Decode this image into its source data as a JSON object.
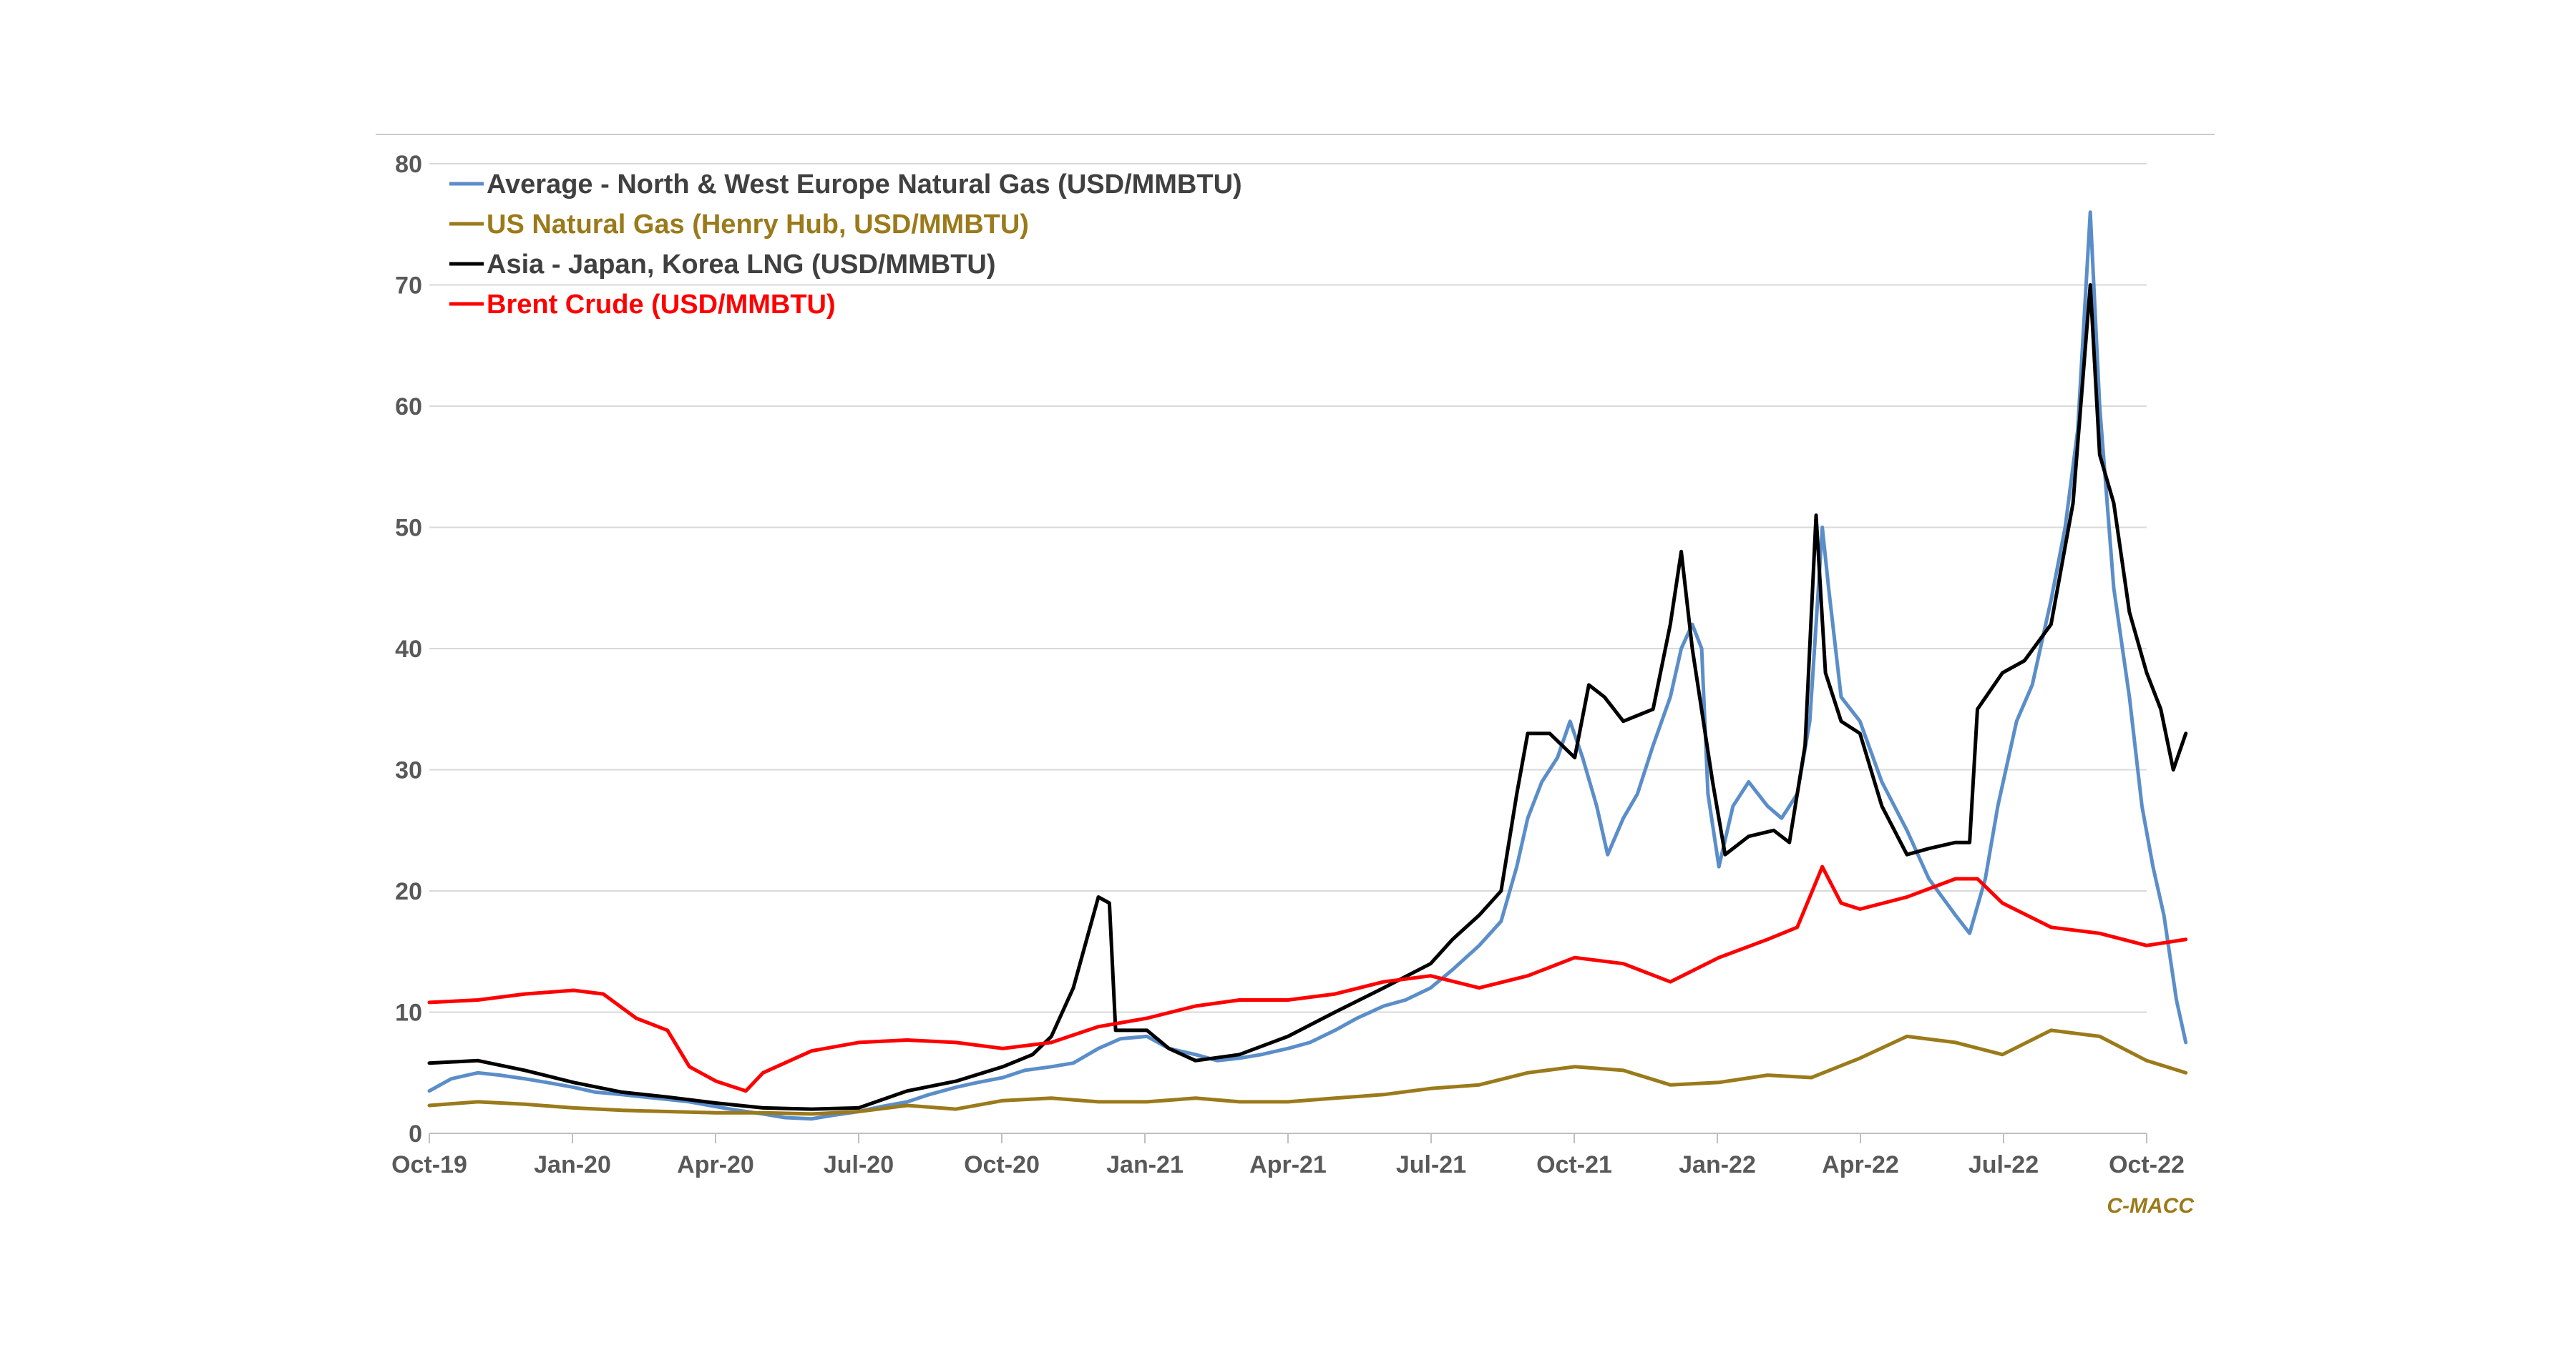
{
  "chart_data": {
    "type": "line",
    "title": "",
    "xlabel": "",
    "ylabel": "",
    "ylim": [
      0,
      80
    ],
    "yticks": [
      "0",
      "10",
      "20",
      "30",
      "40",
      "50",
      "60",
      "70",
      "80"
    ],
    "xticks": [
      "Oct-19",
      "Jan-20",
      "Apr-20",
      "Jul-20",
      "Oct-20",
      "Jan-21",
      "Apr-21",
      "Jul-21",
      "Oct-21",
      "Jan-22",
      "Apr-22",
      "Jul-22",
      "Oct-22"
    ],
    "grid": true,
    "legend_position": "top-left",
    "source_label": "C-MACC",
    "source_color": "#9a7a1a",
    "series": [
      {
        "name": "Average - North & West Europe Natural Gas (USD/MMBTU)",
        "color": "#5b8ec9",
        "points": [
          [
            "2019-10-01",
            3.5
          ],
          [
            "2019-10-15",
            4.5
          ],
          [
            "2019-11-01",
            5.0
          ],
          [
            "2019-11-15",
            4.8
          ],
          [
            "2019-12-01",
            4.5
          ],
          [
            "2019-12-15",
            4.2
          ],
          [
            "2020-01-01",
            3.8
          ],
          [
            "2020-01-15",
            3.4
          ],
          [
            "2020-02-01",
            3.2
          ],
          [
            "2020-02-15",
            3.0
          ],
          [
            "2020-03-01",
            2.8
          ],
          [
            "2020-03-15",
            2.6
          ],
          [
            "2020-04-01",
            2.2
          ],
          [
            "2020-04-15",
            1.9
          ],
          [
            "2020-05-01",
            1.6
          ],
          [
            "2020-05-15",
            1.3
          ],
          [
            "2020-06-01",
            1.2
          ],
          [
            "2020-06-15",
            1.5
          ],
          [
            "2020-07-01",
            1.8
          ],
          [
            "2020-07-15",
            2.2
          ],
          [
            "2020-08-01",
            2.6
          ],
          [
            "2020-08-15",
            3.2
          ],
          [
            "2020-09-01",
            3.8
          ],
          [
            "2020-09-15",
            4.2
          ],
          [
            "2020-10-01",
            4.6
          ],
          [
            "2020-10-15",
            5.2
          ],
          [
            "2020-11-01",
            5.5
          ],
          [
            "2020-11-15",
            5.8
          ],
          [
            "2020-12-01",
            7.0
          ],
          [
            "2020-12-15",
            7.8
          ],
          [
            "2021-01-01",
            8.0
          ],
          [
            "2021-01-15",
            7.0
          ],
          [
            "2021-02-01",
            6.5
          ],
          [
            "2021-02-15",
            6.0
          ],
          [
            "2021-03-01",
            6.2
          ],
          [
            "2021-03-15",
            6.5
          ],
          [
            "2021-04-01",
            7.0
          ],
          [
            "2021-04-15",
            7.5
          ],
          [
            "2021-05-01",
            8.5
          ],
          [
            "2021-05-15",
            9.5
          ],
          [
            "2021-06-01",
            10.5
          ],
          [
            "2021-06-15",
            11.0
          ],
          [
            "2021-07-01",
            12.0
          ],
          [
            "2021-07-15",
            13.5
          ],
          [
            "2021-08-01",
            15.5
          ],
          [
            "2021-08-15",
            17.5
          ],
          [
            "2021-08-25",
            22.0
          ],
          [
            "2021-09-01",
            26.0
          ],
          [
            "2021-09-10",
            29.0
          ],
          [
            "2021-09-20",
            31.0
          ],
          [
            "2021-09-28",
            34.0
          ],
          [
            "2021-10-06",
            31.0
          ],
          [
            "2021-10-15",
            27.0
          ],
          [
            "2021-10-22",
            23.0
          ],
          [
            "2021-11-01",
            26.0
          ],
          [
            "2021-11-10",
            28.0
          ],
          [
            "2021-11-20",
            32.0
          ],
          [
            "2021-12-01",
            36.0
          ],
          [
            "2021-12-08",
            40.0
          ],
          [
            "2021-12-15",
            42.0
          ],
          [
            "2021-12-21",
            40.0
          ],
          [
            "2021-12-25",
            28.0
          ],
          [
            "2022-01-01",
            22.0
          ],
          [
            "2022-01-10",
            27.0
          ],
          [
            "2022-01-20",
            29.0
          ],
          [
            "2022-02-01",
            27.0
          ],
          [
            "2022-02-10",
            26.0
          ],
          [
            "2022-02-20",
            28.0
          ],
          [
            "2022-02-28",
            34.0
          ],
          [
            "2022-03-04",
            42.0
          ],
          [
            "2022-03-08",
            50.0
          ],
          [
            "2022-03-12",
            45.0
          ],
          [
            "2022-03-20",
            36.0
          ],
          [
            "2022-04-01",
            34.0
          ],
          [
            "2022-04-15",
            29.0
          ],
          [
            "2022-05-01",
            25.0
          ],
          [
            "2022-05-15",
            21.0
          ],
          [
            "2022-06-01",
            18.0
          ],
          [
            "2022-06-10",
            16.5
          ],
          [
            "2022-06-20",
            21.0
          ],
          [
            "2022-06-28",
            27.0
          ],
          [
            "2022-07-10",
            34.0
          ],
          [
            "2022-07-20",
            37.0
          ],
          [
            "2022-08-01",
            44.0
          ],
          [
            "2022-08-10",
            50.0
          ],
          [
            "2022-08-18",
            58.0
          ],
          [
            "2022-08-26",
            76.0
          ],
          [
            "2022-09-01",
            60.0
          ],
          [
            "2022-09-10",
            45.0
          ],
          [
            "2022-09-20",
            36.0
          ],
          [
            "2022-09-28",
            27.0
          ],
          [
            "2022-10-05",
            22.0
          ],
          [
            "2022-10-12",
            18.0
          ],
          [
            "2022-10-20",
            11.0
          ],
          [
            "2022-10-26",
            7.5
          ]
        ]
      },
      {
        "name": "US Natural Gas (Henry Hub, USD/MMBTU)",
        "color": "#9a7a1a",
        "points": [
          [
            "2019-10-01",
            2.3
          ],
          [
            "2019-11-01",
            2.6
          ],
          [
            "2019-12-01",
            2.4
          ],
          [
            "2020-01-01",
            2.1
          ],
          [
            "2020-02-01",
            1.9
          ],
          [
            "2020-03-01",
            1.8
          ],
          [
            "2020-04-01",
            1.7
          ],
          [
            "2020-05-01",
            1.7
          ],
          [
            "2020-06-01",
            1.6
          ],
          [
            "2020-07-01",
            1.8
          ],
          [
            "2020-08-01",
            2.3
          ],
          [
            "2020-09-01",
            2.0
          ],
          [
            "2020-10-01",
            2.7
          ],
          [
            "2020-11-01",
            2.9
          ],
          [
            "2020-12-01",
            2.6
          ],
          [
            "2021-01-01",
            2.6
          ],
          [
            "2021-02-01",
            2.9
          ],
          [
            "2021-03-01",
            2.6
          ],
          [
            "2021-04-01",
            2.6
          ],
          [
            "2021-05-01",
            2.9
          ],
          [
            "2021-06-01",
            3.2
          ],
          [
            "2021-07-01",
            3.7
          ],
          [
            "2021-08-01",
            4.0
          ],
          [
            "2021-09-01",
            5.0
          ],
          [
            "2021-10-01",
            5.5
          ],
          [
            "2021-11-01",
            5.2
          ],
          [
            "2021-12-01",
            4.0
          ],
          [
            "2022-01-01",
            4.2
          ],
          [
            "2022-02-01",
            4.8
          ],
          [
            "2022-03-01",
            4.6
          ],
          [
            "2022-04-01",
            6.2
          ],
          [
            "2022-05-01",
            8.0
          ],
          [
            "2022-06-01",
            7.5
          ],
          [
            "2022-07-01",
            6.5
          ],
          [
            "2022-08-01",
            8.5
          ],
          [
            "2022-09-01",
            8.0
          ],
          [
            "2022-10-01",
            6.0
          ],
          [
            "2022-10-26",
            5.0
          ]
        ]
      },
      {
        "name": "Asia - Japan, Korea LNG (USD/MMBTU)",
        "color": "#000000",
        "points": [
          [
            "2019-10-01",
            5.8
          ],
          [
            "2019-11-01",
            6.0
          ],
          [
            "2019-12-01",
            5.2
          ],
          [
            "2020-01-01",
            4.2
          ],
          [
            "2020-02-01",
            3.4
          ],
          [
            "2020-03-01",
            3.0
          ],
          [
            "2020-04-01",
            2.5
          ],
          [
            "2020-05-01",
            2.1
          ],
          [
            "2020-06-01",
            2.0
          ],
          [
            "2020-07-01",
            2.1
          ],
          [
            "2020-08-01",
            3.5
          ],
          [
            "2020-09-01",
            4.3
          ],
          [
            "2020-10-01",
            5.5
          ],
          [
            "2020-10-20",
            6.5
          ],
          [
            "2020-11-01",
            8.0
          ],
          [
            "2020-11-15",
            12.0
          ],
          [
            "2020-12-01",
            19.5
          ],
          [
            "2020-12-08",
            19.0
          ],
          [
            "2020-12-12",
            8.5
          ],
          [
            "2021-01-01",
            8.5
          ],
          [
            "2021-01-15",
            7.0
          ],
          [
            "2021-02-01",
            6.0
          ],
          [
            "2021-03-01",
            6.5
          ],
          [
            "2021-04-01",
            8.0
          ],
          [
            "2021-05-01",
            10.0
          ],
          [
            "2021-06-01",
            12.0
          ],
          [
            "2021-07-01",
            14.0
          ],
          [
            "2021-07-15",
            16.0
          ],
          [
            "2021-08-01",
            18.0
          ],
          [
            "2021-08-15",
            20.0
          ],
          [
            "2021-08-25",
            28.0
          ],
          [
            "2021-09-01",
            33.0
          ],
          [
            "2021-09-15",
            33.0
          ],
          [
            "2021-10-01",
            31.0
          ],
          [
            "2021-10-10",
            37.0
          ],
          [
            "2021-10-20",
            36.0
          ],
          [
            "2021-11-01",
            34.0
          ],
          [
            "2021-11-20",
            35.0
          ],
          [
            "2021-12-01",
            42.0
          ],
          [
            "2021-12-08",
            48.0
          ],
          [
            "2021-12-15",
            40.0
          ],
          [
            "2021-12-28",
            29.0
          ],
          [
            "2022-01-05",
            23.0
          ],
          [
            "2022-01-20",
            24.5
          ],
          [
            "2022-02-05",
            25.0
          ],
          [
            "2022-02-15",
            24.0
          ],
          [
            "2022-02-25",
            32.0
          ],
          [
            "2022-03-04",
            51.0
          ],
          [
            "2022-03-10",
            38.0
          ],
          [
            "2022-03-20",
            34.0
          ],
          [
            "2022-04-01",
            33.0
          ],
          [
            "2022-04-15",
            27.0
          ],
          [
            "2022-05-01",
            23.0
          ],
          [
            "2022-05-15",
            23.5
          ],
          [
            "2022-06-01",
            24.0
          ],
          [
            "2022-06-10",
            24.0
          ],
          [
            "2022-06-15",
            35.0
          ],
          [
            "2022-07-01",
            38.0
          ],
          [
            "2022-07-15",
            39.0
          ],
          [
            "2022-08-01",
            42.0
          ],
          [
            "2022-08-15",
            52.0
          ],
          [
            "2022-08-26",
            70.0
          ],
          [
            "2022-09-01",
            56.0
          ],
          [
            "2022-09-10",
            52.0
          ],
          [
            "2022-09-20",
            43.0
          ],
          [
            "2022-10-01",
            38.0
          ],
          [
            "2022-10-10",
            35.0
          ],
          [
            "2022-10-18",
            30.0
          ],
          [
            "2022-10-26",
            33.0
          ]
        ]
      },
      {
        "name": "Brent Crude (USD/MMBTU)",
        "color": "#ff0000",
        "points": [
          [
            "2019-10-01",
            10.8
          ],
          [
            "2019-11-01",
            11.0
          ],
          [
            "2019-12-01",
            11.5
          ],
          [
            "2020-01-01",
            11.8
          ],
          [
            "2020-01-20",
            11.5
          ],
          [
            "2020-02-10",
            9.5
          ],
          [
            "2020-03-01",
            8.5
          ],
          [
            "2020-03-15",
            5.5
          ],
          [
            "2020-04-01",
            4.3
          ],
          [
            "2020-04-20",
            3.5
          ],
          [
            "2020-05-01",
            5.0
          ],
          [
            "2020-06-01",
            6.8
          ],
          [
            "2020-07-01",
            7.5
          ],
          [
            "2020-08-01",
            7.7
          ],
          [
            "2020-09-01",
            7.5
          ],
          [
            "2020-10-01",
            7.0
          ],
          [
            "2020-11-01",
            7.5
          ],
          [
            "2020-12-01",
            8.8
          ],
          [
            "2021-01-01",
            9.5
          ],
          [
            "2021-02-01",
            10.5
          ],
          [
            "2021-03-01",
            11.0
          ],
          [
            "2021-04-01",
            11.0
          ],
          [
            "2021-05-01",
            11.5
          ],
          [
            "2021-06-01",
            12.5
          ],
          [
            "2021-07-01",
            13.0
          ],
          [
            "2021-08-01",
            12.0
          ],
          [
            "2021-09-01",
            13.0
          ],
          [
            "2021-10-01",
            14.5
          ],
          [
            "2021-11-01",
            14.0
          ],
          [
            "2021-12-01",
            12.5
          ],
          [
            "2022-01-01",
            14.5
          ],
          [
            "2022-02-01",
            16.0
          ],
          [
            "2022-02-20",
            17.0
          ],
          [
            "2022-03-08",
            22.0
          ],
          [
            "2022-03-20",
            19.0
          ],
          [
            "2022-04-01",
            18.5
          ],
          [
            "2022-05-01",
            19.5
          ],
          [
            "2022-06-01",
            21.0
          ],
          [
            "2022-06-15",
            21.0
          ],
          [
            "2022-07-01",
            19.0
          ],
          [
            "2022-08-01",
            17.0
          ],
          [
            "2022-09-01",
            16.5
          ],
          [
            "2022-10-01",
            15.5
          ],
          [
            "2022-10-26",
            16.0
          ]
        ]
      }
    ]
  }
}
